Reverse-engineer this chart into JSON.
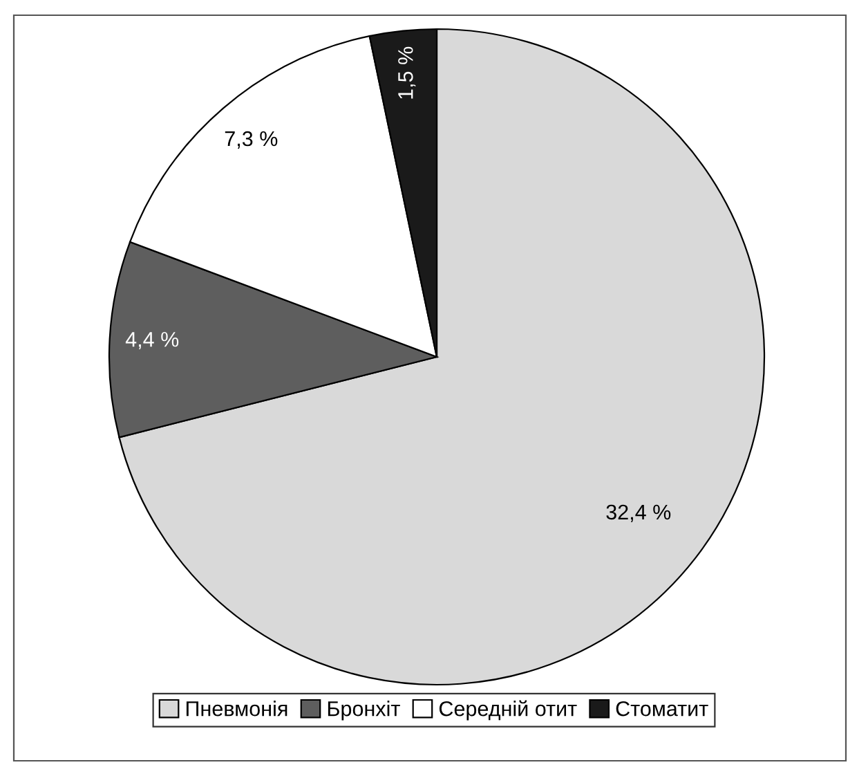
{
  "chart_data": {
    "type": "pie",
    "categories": [
      "Пневмонія",
      "Бронхіт",
      "Середній отит",
      "Стоматит"
    ],
    "values": [
      32.4,
      4.4,
      7.3,
      1.5
    ],
    "colors": [
      "#d9d9d9",
      "#5e5e5e",
      "#ffffff",
      "#1a1a1a"
    ],
    "value_labels": [
      "32,4 %",
      "4,4 %",
      "7,3 %",
      "1,5 %"
    ],
    "legend": "bottom"
  }
}
